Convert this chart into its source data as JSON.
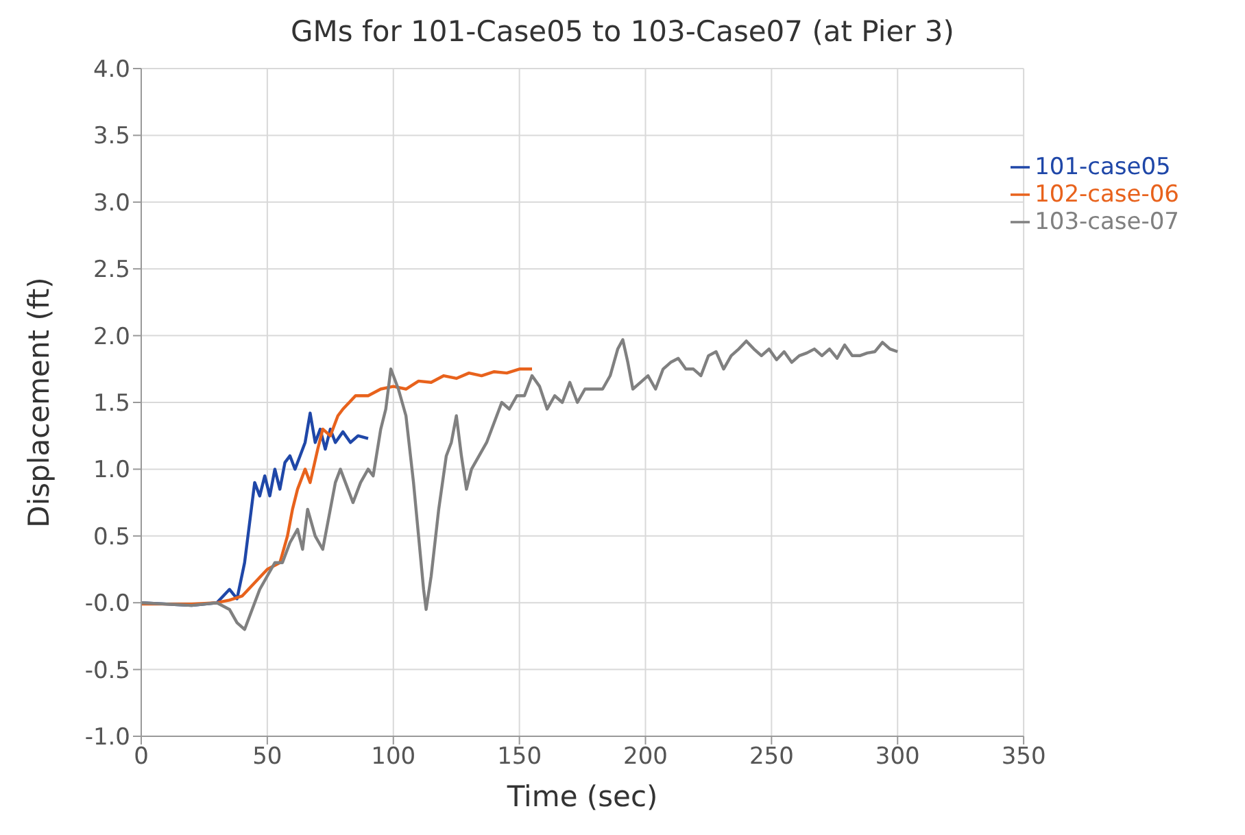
{
  "chart_data": {
    "type": "line",
    "title": "GMs for 101-Case05 to 103-Case07 (at Pier 3)",
    "xlabel": "Time (sec)",
    "ylabel": "Displacement (ft)",
    "xlim": [
      0,
      350
    ],
    "xticks": [
      0,
      50,
      100,
      150,
      200,
      250,
      300,
      350
    ],
    "ylim": [
      -1,
      4
    ],
    "yticks": [
      {
        "value": -1,
        "label": "-1.0"
      },
      {
        "value": -0.5,
        "label": "-0.5"
      },
      {
        "value": 0,
        "label": "-0.0"
      },
      {
        "value": 0.5,
        "label": "0.5"
      },
      {
        "value": 1,
        "label": "1.0"
      },
      {
        "value": 1.5,
        "label": "1.5"
      },
      {
        "value": 2,
        "label": "2.0"
      },
      {
        "value": 2.5,
        "label": "2.5"
      },
      {
        "value": 3,
        "label": "3.0"
      },
      {
        "value": 3.5,
        "label": "3.5"
      },
      {
        "value": 4,
        "label": "4.0"
      }
    ],
    "grid": true,
    "legend": "top right",
    "marker": "none",
    "line_style": "solid",
    "series": [
      {
        "name": "101-case05",
        "color": "#1f47a8",
        "x": [
          0,
          10,
          20,
          30,
          35,
          38,
          41,
          43,
          45,
          47,
          49,
          51,
          53,
          55,
          57,
          59,
          61,
          63,
          65,
          67,
          69,
          71,
          73,
          75,
          77,
          80,
          83,
          86,
          90
        ],
        "values": [
          0,
          -0.01,
          -0.02,
          0,
          0.1,
          0.03,
          0.3,
          0.6,
          0.9,
          0.8,
          0.95,
          0.8,
          1.0,
          0.85,
          1.05,
          1.1,
          1.0,
          1.1,
          1.2,
          1.42,
          1.2,
          1.3,
          1.15,
          1.3,
          1.2,
          1.28,
          1.2,
          1.25,
          1.23
        ]
      },
      {
        "name": "102-case-06",
        "color": "#e8621c",
        "x": [
          0,
          10,
          20,
          30,
          35,
          40,
          45,
          50,
          55,
          58,
          60,
          62,
          65,
          67,
          70,
          72,
          75,
          78,
          80,
          85,
          90,
          95,
          100,
          105,
          110,
          115,
          120,
          125,
          130,
          135,
          140,
          145,
          150,
          155
        ],
        "values": [
          -0.01,
          -0.01,
          -0.01,
          0,
          0.02,
          0.05,
          0.15,
          0.25,
          0.3,
          0.5,
          0.7,
          0.85,
          1.0,
          0.9,
          1.15,
          1.3,
          1.25,
          1.4,
          1.45,
          1.55,
          1.55,
          1.6,
          1.62,
          1.6,
          1.66,
          1.65,
          1.7,
          1.68,
          1.72,
          1.7,
          1.73,
          1.72,
          1.75,
          1.75
        ]
      },
      {
        "name": "103-case-07",
        "color": "#808080",
        "x": [
          0,
          20,
          30,
          35,
          38,
          41,
          44,
          47,
          50,
          53,
          56,
          59,
          62,
          64,
          66,
          69,
          72,
          75,
          77,
          79,
          81,
          84,
          87,
          90,
          92,
          95,
          97,
          99,
          102,
          105,
          108,
          110,
          112,
          113,
          115,
          118,
          121,
          123,
          125,
          127,
          129,
          131,
          134,
          137,
          140,
          143,
          146,
          149,
          152,
          155,
          158,
          161,
          164,
          167,
          170,
          173,
          176,
          180,
          183,
          186,
          189,
          191,
          193,
          195,
          198,
          201,
          204,
          207,
          210,
          213,
          216,
          219,
          222,
          225,
          228,
          231,
          234,
          237,
          240,
          243,
          246,
          249,
          252,
          255,
          258,
          261,
          264,
          267,
          270,
          273,
          276,
          279,
          282,
          285,
          288,
          291,
          294,
          297,
          300
        ],
        "values": [
          0,
          -0.02,
          0,
          -0.05,
          -0.15,
          -0.2,
          -0.05,
          0.1,
          0.2,
          0.3,
          0.3,
          0.45,
          0.55,
          0.4,
          0.7,
          0.5,
          0.4,
          0.7,
          0.9,
          1.0,
          0.9,
          0.75,
          0.9,
          1.0,
          0.95,
          1.3,
          1.45,
          1.75,
          1.6,
          1.4,
          0.9,
          0.5,
          0.1,
          -0.05,
          0.2,
          0.7,
          1.1,
          1.2,
          1.4,
          1.1,
          0.85,
          1.0,
          1.1,
          1.2,
          1.35,
          1.5,
          1.45,
          1.55,
          1.55,
          1.7,
          1.62,
          1.45,
          1.55,
          1.5,
          1.65,
          1.5,
          1.6,
          1.6,
          1.6,
          1.7,
          1.9,
          1.97,
          1.8,
          1.6,
          1.65,
          1.7,
          1.6,
          1.75,
          1.8,
          1.83,
          1.75,
          1.75,
          1.7,
          1.85,
          1.88,
          1.75,
          1.85,
          1.9,
          1.96,
          1.9,
          1.85,
          1.9,
          1.82,
          1.88,
          1.8,
          1.85,
          1.87,
          1.9,
          1.85,
          1.9,
          1.83,
          1.93,
          1.85,
          1.85,
          1.87,
          1.88,
          1.95,
          1.9,
          1.88
        ]
      }
    ]
  }
}
